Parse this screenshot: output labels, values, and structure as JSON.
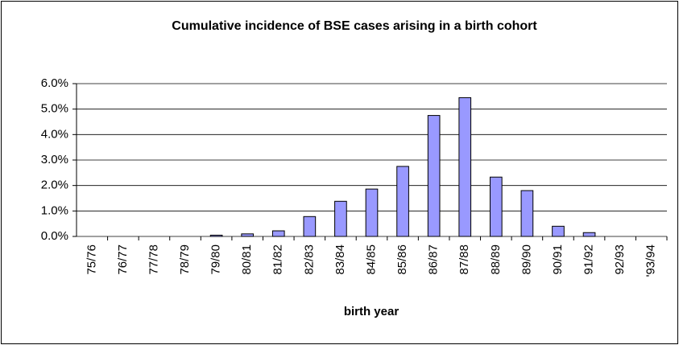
{
  "chart_data": {
    "type": "bar",
    "title": "Cumulative incidence of BSE cases arising in a birth cohort",
    "x_label": "birth year",
    "categories": [
      "75/76",
      "76/77",
      "77/78",
      "78/79",
      "79/80",
      "80/81",
      "81/82",
      "82/83",
      "83/84",
      "84/85",
      "85/86",
      "86/87",
      "87/88",
      "88/89",
      "89/90",
      "90/91",
      "91/92",
      "92/93",
      "'93/94"
    ],
    "values": [
      0,
      0,
      0,
      0,
      0.05,
      0.1,
      0.22,
      0.78,
      1.38,
      1.86,
      2.75,
      4.75,
      5.45,
      2.33,
      1.8,
      0.4,
      0.15,
      0,
      0
    ],
    "color": "#9999ff",
    "ylim": [
      0,
      6
    ],
    "yticks": [
      {
        "value": 0,
        "label": "0.0%"
      },
      {
        "value": 1,
        "label": "1.0%"
      },
      {
        "value": 2,
        "label": "2.0%"
      },
      {
        "value": 3,
        "label": "3.0%"
      },
      {
        "value": 4,
        "label": "4.0%"
      },
      {
        "value": 5,
        "label": "5.0%"
      },
      {
        "value": 6,
        "label": "6.0%"
      }
    ],
    "grid": true
  }
}
